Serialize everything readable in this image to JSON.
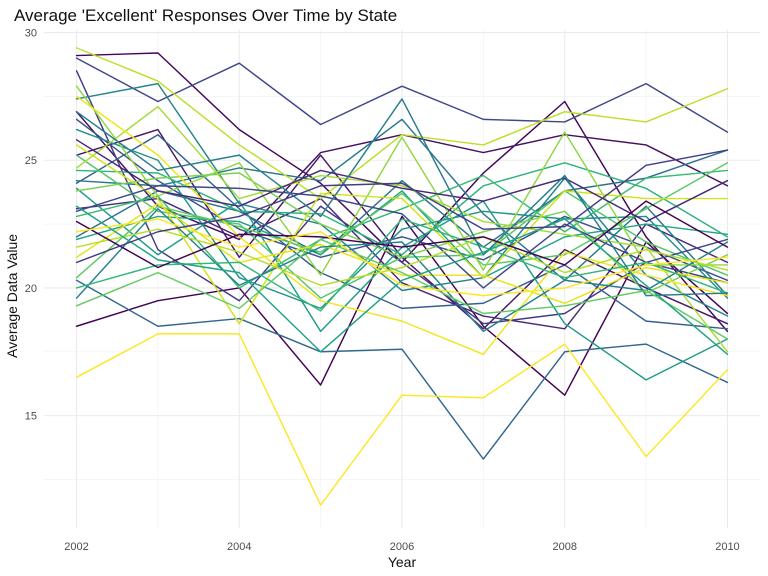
{
  "chart_data": {
    "type": "line",
    "title": "Average 'Excellent' Responses Over Time by State",
    "xlabel": "Year",
    "ylabel": "Average Data Value",
    "x": [
      2002,
      2003,
      2004,
      2005,
      2006,
      2007,
      2008,
      2009,
      2010
    ],
    "x_ticks": [
      2002,
      2004,
      2006,
      2008,
      2010
    ],
    "y_ticks": [
      15,
      20,
      25,
      30
    ],
    "xlim": [
      2002,
      2010
    ],
    "ylim": [
      10.6,
      30.1
    ],
    "grid": true,
    "legend": "none",
    "series": [
      {
        "color": "#440154",
        "values": [
          18.5,
          19.5,
          20.0,
          16.2,
          22.8,
          18.5,
          15.8,
          21.8,
          19.0
        ]
      },
      {
        "color": "#45065a",
        "values": [
          29.1,
          29.2,
          26.2,
          24.1,
          21.0,
          24.5,
          27.3,
          22.0,
          18.3
        ]
      },
      {
        "color": "#471063",
        "values": [
          26.9,
          23.2,
          21.9,
          25.3,
          26.0,
          25.3,
          26.0,
          25.6,
          24.0
        ]
      },
      {
        "color": "#48186a",
        "values": [
          25.2,
          26.2,
          21.2,
          25.2,
          21.2,
          18.4,
          21.5,
          20.0,
          18.6
        ]
      },
      {
        "color": "#472b7a",
        "values": [
          23.1,
          23.5,
          22.0,
          23.5,
          20.2,
          18.9,
          18.4,
          22.5,
          21.0
        ]
      },
      {
        "color": "#443a83",
        "values": [
          28.5,
          21.5,
          19.5,
          23.2,
          21.0,
          18.6,
          19.0,
          21.0,
          20.2
        ]
      },
      {
        "color": "#404788",
        "values": [
          29.0,
          27.3,
          28.8,
          26.4,
          27.9,
          26.6,
          26.5,
          28.0,
          26.1
        ]
      },
      {
        "color": "#3b528b",
        "values": [
          26.6,
          24.2,
          22.3,
          21.2,
          22.0,
          21.1,
          22.8,
          21.6,
          20.3
        ]
      },
      {
        "color": "#355f8d",
        "values": [
          24.1,
          26.0,
          23.1,
          20.6,
          19.2,
          19.4,
          20.9,
          18.7,
          18.4
        ]
      },
      {
        "color": "#31688e",
        "values": [
          20.3,
          18.5,
          18.8,
          17.5,
          17.6,
          13.3,
          17.5,
          17.8,
          16.3
        ]
      },
      {
        "color": "#2d708e",
        "values": [
          22.0,
          23.8,
          23.0,
          21.3,
          24.2,
          21.6,
          23.8,
          24.3,
          25.4
        ]
      },
      {
        "color": "#2a788e",
        "values": [
          24.2,
          24.0,
          24.7,
          24.2,
          26.6,
          22.9,
          20.3,
          23.2,
          19.7
        ]
      },
      {
        "color": "#25848e",
        "values": [
          27.4,
          28.0,
          23.3,
          22.5,
          19.9,
          20.4,
          24.3,
          20.5,
          18.9
        ]
      },
      {
        "color": "#21918c",
        "values": [
          26.2,
          25.0,
          20.4,
          19.2,
          22.3,
          23.0,
          22.7,
          22.8,
          19.6
        ]
      },
      {
        "color": "#1e9b8a",
        "values": [
          23.9,
          21.3,
          23.4,
          18.3,
          21.6,
          23.4,
          18.6,
          16.4,
          18.0
        ]
      },
      {
        "color": "#21a585",
        "values": [
          21.9,
          22.8,
          22.6,
          21.3,
          23.8,
          20.4,
          22.0,
          22.5,
          22.1
        ]
      },
      {
        "color": "#2eb37c",
        "values": [
          24.6,
          24.5,
          23.0,
          22.9,
          21.3,
          24.0,
          24.9,
          23.9,
          22.0
        ]
      },
      {
        "color": "#3bbb75",
        "values": [
          22.8,
          23.6,
          20.0,
          21.9,
          23.1,
          24.4,
          22.2,
          24.3,
          24.6
        ]
      },
      {
        "color": "#52c569",
        "values": [
          25.2,
          23.0,
          22.5,
          19.6,
          21.2,
          21.3,
          23.8,
          21.8,
          20.5
        ]
      },
      {
        "color": "#5ec962",
        "values": [
          20.4,
          23.2,
          22.4,
          21.4,
          23.7,
          20.9,
          21.3,
          23.1,
          24.9
        ]
      },
      {
        "color": "#7ad151",
        "values": [
          23.8,
          24.3,
          24.5,
          22.5,
          21.2,
          22.2,
          23.0,
          19.8,
          21.3
        ]
      },
      {
        "color": "#8fd744",
        "values": [
          27.9,
          23.6,
          24.9,
          20.5,
          25.9,
          20.7,
          26.1,
          20.9,
          20.9
        ]
      },
      {
        "color": "#a5db36",
        "values": [
          24.7,
          27.1,
          23.5,
          24.4,
          24.0,
          22.6,
          22.1,
          21.6,
          17.5
        ]
      },
      {
        "color": "#bddf26",
        "values": [
          29.4,
          28.1,
          25.6,
          23.5,
          26.0,
          25.6,
          26.9,
          26.5,
          27.8
        ]
      },
      {
        "color": "#d2e21b",
        "values": [
          25.6,
          23.5,
          18.6,
          23.7,
          23.5,
          20.4,
          23.8,
          23.5,
          23.5
        ]
      },
      {
        "color": "#e5e419",
        "values": [
          21.2,
          23.3,
          21.0,
          21.7,
          20.5,
          20.5,
          19.4,
          20.8,
          20.2
        ]
      },
      {
        "color": "#f1e51d",
        "values": [
          27.5,
          25.2,
          22.0,
          19.5,
          18.7,
          17.4,
          21.4,
          20.5,
          19.7
        ]
      },
      {
        "color": "#fde725",
        "values": [
          16.5,
          18.2,
          18.2,
          11.5,
          15.8,
          15.7,
          17.8,
          13.4,
          16.8
        ]
      },
      {
        "color": "#3e4a89",
        "values": [
          23.0,
          24.0,
          23.9,
          23.6,
          22.9,
          20.0,
          22.5,
          21.0,
          21.9
        ]
      },
      {
        "color": "#26828e",
        "values": [
          19.6,
          23.1,
          20.1,
          21.6,
          21.8,
          18.3,
          20.3,
          19.9,
          21.8
        ]
      },
      {
        "color": "#35b779",
        "values": [
          20.0,
          20.9,
          21.0,
          19.1,
          22.7,
          21.6,
          20.4,
          21.0,
          19.8
        ]
      },
      {
        "color": "#b8de29",
        "values": [
          21.6,
          22.3,
          21.4,
          20.1,
          20.8,
          22.0,
          20.6,
          21.5,
          20.7
        ]
      },
      {
        "color": "#482878",
        "values": [
          25.8,
          23.8,
          23.2,
          24.6,
          23.9,
          23.4,
          24.3,
          22.6,
          24.2
        ]
      },
      {
        "color": "#287c8e",
        "values": [
          26.9,
          24.6,
          25.2,
          22.8,
          27.4,
          21.3,
          24.4,
          19.7,
          19.8
        ]
      },
      {
        "color": "#440154",
        "values": [
          22.6,
          20.8,
          22.1,
          22.0,
          21.6,
          22.0,
          20.9,
          23.4,
          21.6
        ]
      },
      {
        "color": "#63cb5f",
        "values": [
          19.3,
          20.6,
          19.2,
          21.9,
          20.6,
          19.0,
          19.3,
          19.9,
          18.0
        ]
      },
      {
        "color": "#20a386",
        "values": [
          23.2,
          21.1,
          20.6,
          17.5,
          20.3,
          21.4,
          22.7,
          20.1,
          17.4
        ]
      },
      {
        "color": "#fde725",
        "values": [
          22.2,
          22.7,
          21.6,
          22.2,
          20.1,
          19.7,
          20.0,
          20.9,
          21.2
        ]
      },
      {
        "color": "#433e85",
        "values": [
          21.0,
          22.2,
          22.8,
          24.0,
          24.1,
          22.3,
          22.4,
          24.8,
          25.4
        ]
      }
    ]
  }
}
